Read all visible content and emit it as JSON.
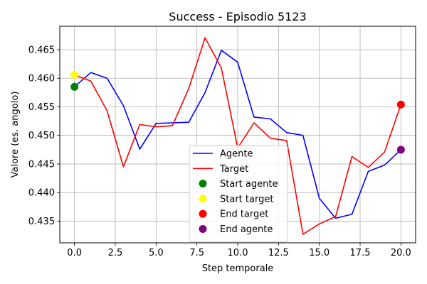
{
  "chart_data": {
    "type": "line",
    "title": "Success - Episodio 5123",
    "xlabel": "Step temporale",
    "ylabel": "Valore (es. angolo)",
    "xlim": [
      -0.9,
      20.9
    ],
    "ylim": [
      0.4312,
      0.4691
    ],
    "xticks": [
      0.0,
      2.5,
      5.0,
      7.5,
      10.0,
      12.5,
      15.0,
      17.5,
      20.0
    ],
    "xtick_labels": [
      "0.0",
      "2.5",
      "5.0",
      "7.5",
      "10.0",
      "12.5",
      "15.0",
      "17.5",
      "20.0"
    ],
    "yticks": [
      0.435,
      0.44,
      0.445,
      0.45,
      0.455,
      0.46,
      0.465
    ],
    "ytick_labels": [
      "0.435",
      "0.440",
      "0.445",
      "0.450",
      "0.455",
      "0.460",
      "0.465"
    ],
    "grid": true,
    "legend_position": "bottom-center",
    "x": [
      0,
      1,
      2,
      3,
      4,
      5,
      6,
      7,
      8,
      9,
      10,
      11,
      12,
      13,
      14,
      15,
      16,
      17,
      18,
      19,
      20
    ],
    "series": [
      {
        "name": "Agente",
        "color": "#0000ff",
        "values": [
          0.4585,
          0.461,
          0.46,
          0.4552,
          0.4476,
          0.4521,
          0.4522,
          0.4523,
          0.4575,
          0.4649,
          0.4628,
          0.4532,
          0.4529,
          0.4505,
          0.45,
          0.439,
          0.4355,
          0.4362,
          0.4437,
          0.4448,
          0.4475
        ]
      },
      {
        "name": "Target",
        "color": "#ff0000",
        "values": [
          0.4606,
          0.4595,
          0.4543,
          0.4445,
          0.4519,
          0.4515,
          0.4517,
          0.4582,
          0.4671,
          0.4618,
          0.4478,
          0.4522,
          0.4495,
          0.4491,
          0.4327,
          0.4345,
          0.4358,
          0.4463,
          0.4444,
          0.4471,
          0.4554
        ]
      }
    ],
    "markers": [
      {
        "name": "Start agente",
        "color": "#008000",
        "x": 0,
        "y": 0.4585
      },
      {
        "name": "Start target",
        "color": "#ffff00",
        "x": 0,
        "y": 0.4606
      },
      {
        "name": "End target",
        "color": "#ff0000",
        "x": 20,
        "y": 0.4554
      },
      {
        "name": "End agente",
        "color": "#800080",
        "x": 20,
        "y": 0.4475
      }
    ]
  }
}
